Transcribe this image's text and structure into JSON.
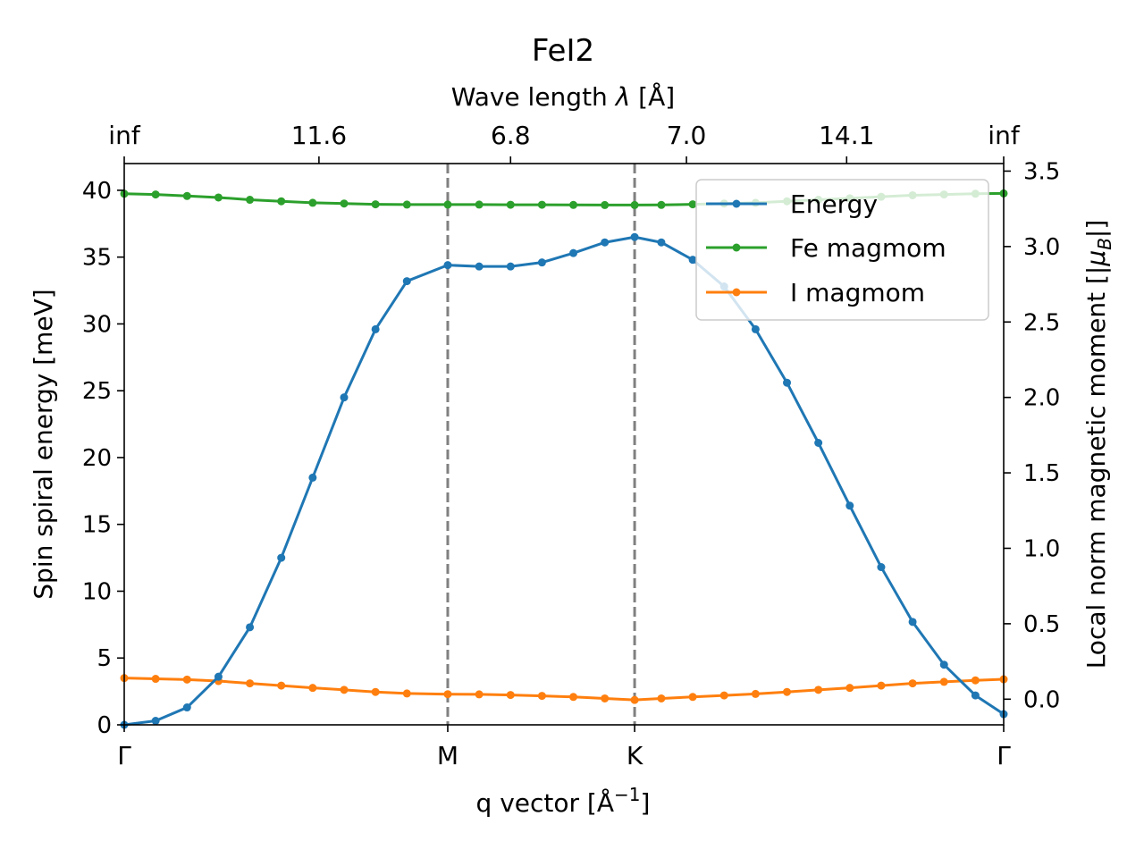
{
  "chart_data": {
    "type": "line",
    "title": "FeI2",
    "xlabel": "q vector [Å$^{-1}$]",
    "xlabel_parts": {
      "main": "q vector [Å",
      "sup": "−1",
      "close": "]"
    },
    "ylabel": "Spin spiral energy [meV]",
    "y2label": "Local norm magnetic moment [|μB|]",
    "y2label_parts": {
      "main": "Local norm magnetic moment [|",
      "mu": "μ",
      "sub": "B",
      "close": "|]"
    },
    "top_xlabel": "Wave length λ [Å]",
    "top_xlabel_parts": {
      "main": "Wave length ",
      "lambda": "λ",
      "close": " [Å]"
    },
    "xlim": [
      0,
      28
    ],
    "ylim": [
      0,
      42
    ],
    "y2lim": [
      -0.17,
      3.55
    ],
    "x_ticks": [
      {
        "x": 0,
        "label": "Γ"
      },
      {
        "x": 10.3,
        "label": "M"
      },
      {
        "x": 16.25,
        "label": "K"
      },
      {
        "x": 28,
        "label": "Γ"
      }
    ],
    "top_ticks": [
      {
        "x": 0,
        "label": "inf"
      },
      {
        "x": 6.2,
        "label": "11.6"
      },
      {
        "x": 12.3,
        "label": "6.8"
      },
      {
        "x": 17.9,
        "label": "7.0"
      },
      {
        "x": 23.0,
        "label": "14.1"
      },
      {
        "x": 28,
        "label": "inf"
      }
    ],
    "y_ticks": [
      0,
      5,
      10,
      15,
      20,
      25,
      30,
      35,
      40
    ],
    "y2_ticks": [
      "0.0",
      "0.5",
      "1.0",
      "1.5",
      "2.0",
      "2.5",
      "3.0",
      "3.5"
    ],
    "vlines": [
      10.3,
      16.25
    ],
    "legend_position": "top-right",
    "x": [
      0,
      1,
      2,
      3,
      4,
      5,
      6,
      7,
      8,
      9,
      10.3,
      11.3,
      12.3,
      13.3,
      14.3,
      15.3,
      16.25,
      17.1,
      18.1,
      19.1,
      20.1,
      21.1,
      22.1,
      23.1,
      24.1,
      25.1,
      26.1,
      27.1,
      28
    ],
    "series": [
      {
        "name": "Energy",
        "axis": "left",
        "color": "#1f77b4",
        "values": [
          0.0,
          0.3,
          1.3,
          3.6,
          7.3,
          12.5,
          18.5,
          24.5,
          29.6,
          33.2,
          34.4,
          34.3,
          34.3,
          34.6,
          35.3,
          36.1,
          36.5,
          36.1,
          34.8,
          32.8,
          29.6,
          25.6,
          21.1,
          16.4,
          11.8,
          7.7,
          4.5,
          2.2,
          0.8
        ]
      },
      {
        "name": "Fe magmom",
        "axis": "right",
        "color": "#2ca02c",
        "values": [
          3.35,
          3.345,
          3.335,
          3.325,
          3.31,
          3.3,
          3.29,
          3.285,
          3.28,
          3.278,
          3.278,
          3.278,
          3.277,
          3.277,
          3.276,
          3.275,
          3.275,
          3.276,
          3.28,
          3.285,
          3.29,
          3.3,
          3.31,
          3.32,
          3.33,
          3.34,
          3.345,
          3.35,
          3.352
        ]
      },
      {
        "name": "I magmom",
        "axis": "right",
        "color": "#ff7f0e",
        "values": [
          0.14,
          0.135,
          0.13,
          0.12,
          0.105,
          0.09,
          0.075,
          0.062,
          0.048,
          0.038,
          0.033,
          0.032,
          0.028,
          0.022,
          0.015,
          0.005,
          -0.005,
          0.005,
          0.015,
          0.025,
          0.035,
          0.048,
          0.062,
          0.075,
          0.09,
          0.105,
          0.115,
          0.125,
          0.132
        ]
      }
    ]
  }
}
